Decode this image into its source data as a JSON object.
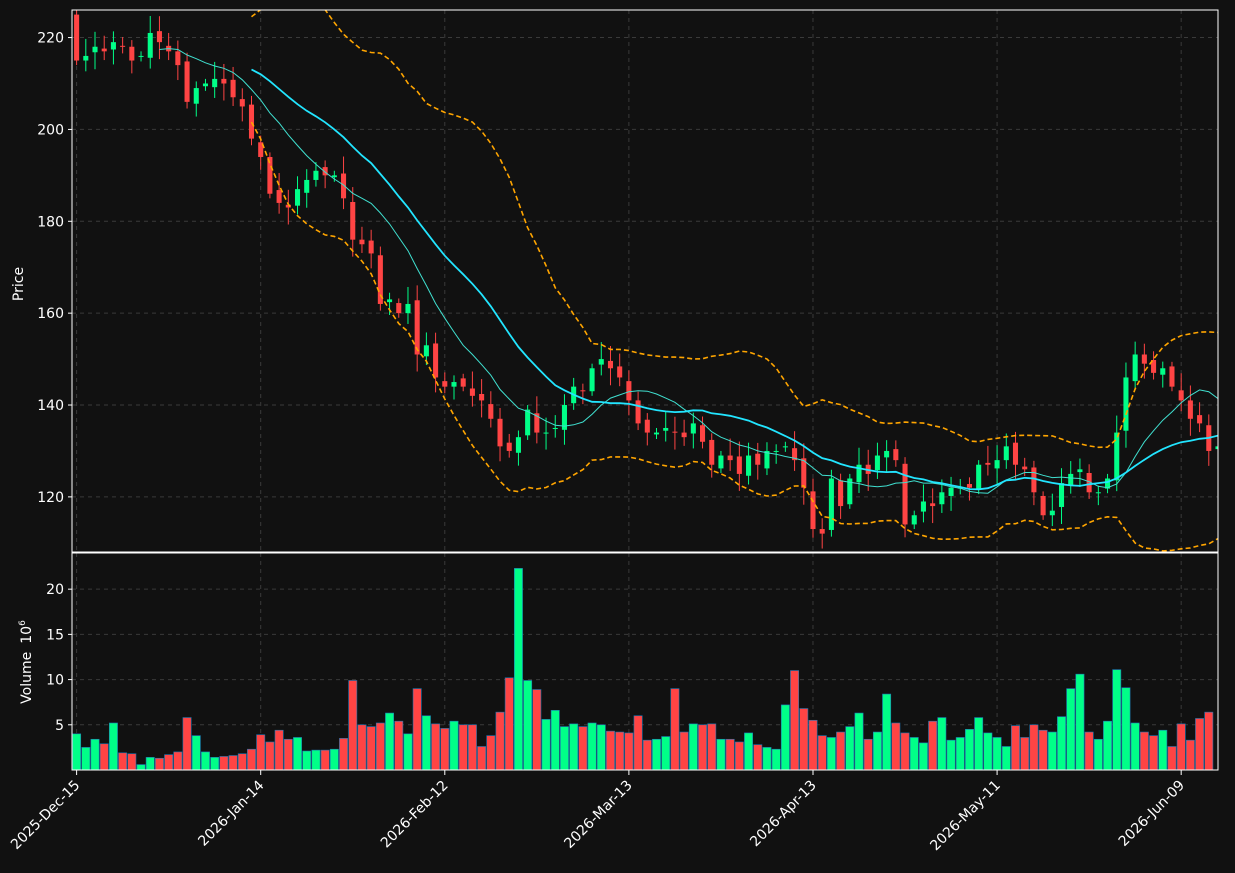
{
  "chart_data": [
    {
      "type": "candlestick",
      "panel": "price",
      "ylabel": "Price",
      "ylim": [
        108,
        226
      ],
      "yticks": [
        120,
        140,
        160,
        180,
        200,
        220
      ],
      "grid": true,
      "overlays": [
        {
          "kind": "moving-average-fast",
          "color": "#40e0d0"
        },
        {
          "kind": "moving-average-slow",
          "color": "#22e5ff"
        },
        {
          "kind": "bollinger-bands",
          "color": "#ffa500",
          "style": "dashed"
        }
      ],
      "up_color": "#00ff88",
      "down_color": "#ff4444",
      "closes": [
        215,
        216,
        218,
        217,
        219,
        218,
        215,
        216,
        221,
        219,
        217,
        214,
        206,
        209,
        210,
        211,
        210,
        207,
        205,
        198,
        194,
        186,
        184,
        183,
        187,
        189,
        191,
        190,
        190,
        185,
        176,
        175,
        173,
        162,
        163,
        160,
        162,
        151,
        153,
        146,
        144,
        145,
        144,
        142,
        141,
        137,
        131,
        130,
        133,
        139,
        134,
        134,
        135,
        140,
        144,
        143,
        148,
        150,
        148,
        146,
        141,
        136,
        134,
        134,
        135,
        134,
        133,
        136,
        132,
        127,
        129,
        128,
        125,
        129,
        127,
        130,
        130,
        131,
        128,
        122,
        113,
        112,
        124,
        118,
        124,
        127,
        125,
        129,
        130,
        128,
        114,
        116,
        119,
        118,
        121,
        122,
        122,
        122,
        127,
        127,
        128,
        131,
        127,
        126,
        121,
        116,
        117,
        123,
        125,
        126,
        121,
        121,
        124,
        134,
        146,
        151,
        149,
        147,
        148,
        144,
        141,
        137,
        136,
        130,
        131
      ],
      "volumes": [
        4.0,
        2.5,
        3.4,
        2.9,
        5.2,
        1.9,
        1.8,
        0.6,
        1.4,
        1.3,
        1.7,
        2.0,
        5.8,
        3.8,
        2.0,
        1.4,
        1.5,
        1.6,
        1.8,
        2.3,
        3.9,
        3.1,
        4.4,
        3.4,
        3.6,
        2.1,
        2.2,
        2.2,
        2.3,
        3.5,
        9.9,
        5.0,
        4.8,
        5.2,
        6.3,
        5.4,
        4.0,
        9.0,
        6.0,
        5.1,
        4.6,
        5.4,
        5.0,
        5.0,
        2.6,
        3.8,
        6.4,
        10.2,
        22.3,
        9.9,
        8.9,
        5.6,
        6.6,
        4.8,
        5.1,
        4.8,
        5.2,
        5.0,
        4.3,
        4.2,
        4.1,
        6.0,
        3.3,
        3.4,
        3.7,
        9.0,
        4.2,
        5.1,
        5.0,
        5.1,
        3.4,
        3.4,
        3.1,
        4.1,
        2.8,
        2.5,
        2.3,
        7.2,
        11.0,
        6.8,
        5.5,
        3.8,
        3.6,
        4.2,
        4.8,
        6.3,
        3.4,
        4.2,
        8.4,
        5.2,
        4.1,
        3.6,
        3.0,
        5.4,
        5.8,
        3.3,
        3.6,
        4.5,
        5.8,
        4.1,
        3.6,
        2.6,
        4.9,
        3.6,
        5.0,
        4.4,
        4.2,
        5.9,
        9.0,
        10.6,
        4.2,
        3.4,
        5.4,
        11.1,
        9.1,
        5.2,
        4.2,
        3.8,
        4.4,
        2.6,
        5.1,
        3.3,
        5.7,
        6.4
      ]
    },
    {
      "type": "bar",
      "panel": "volume",
      "ylabel": "Volume",
      "unit_multiplier": "10",
      "unit_exponent": "6",
      "yticks": [
        5,
        10,
        15,
        20
      ],
      "ylim": [
        0,
        24
      ],
      "grid": true
    }
  ],
  "x_axis": {
    "tick_labels": [
      "2025-Dec-15",
      "2026-Jan-14",
      "2026-Feb-12",
      "2026-Mar-13",
      "2026-Apr-13",
      "2026-May-11",
      "2026-Jun-09"
    ],
    "tick_indices": [
      0,
      20,
      40,
      60,
      80,
      100,
      120
    ]
  }
}
